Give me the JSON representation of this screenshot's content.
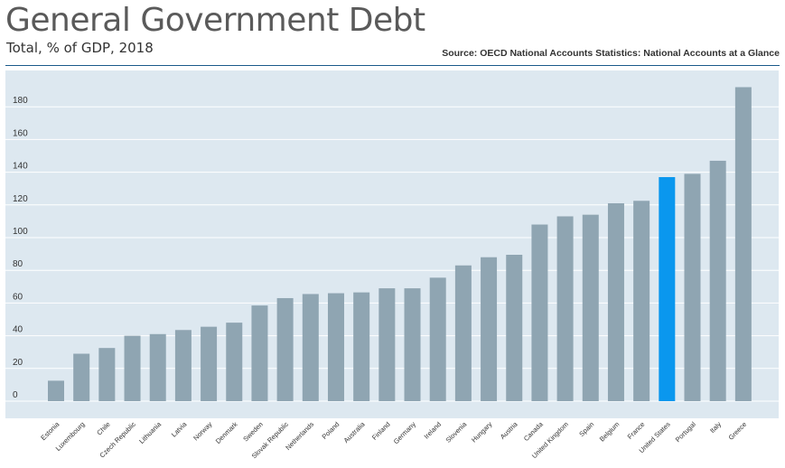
{
  "header": {
    "title": "General Government Debt",
    "subtitle": "Total, % of GDP, 2018",
    "source": "Source: OECD National Accounts Statistics: National Accounts at a Glance"
  },
  "colors": {
    "plot_background": "#dde8f0",
    "bar_default": "#8fa5b2",
    "bar_highlight": "#0a97ee",
    "rule": "#1a5a8a"
  },
  "chart_data": {
    "type": "bar",
    "title": "General Government Debt",
    "subtitle": "Total, % of GDP, 2018",
    "xlabel": "",
    "ylabel": "",
    "ylim": [
      0,
      200
    ],
    "yticks": [
      0,
      20,
      40,
      60,
      80,
      100,
      120,
      140,
      160,
      180
    ],
    "grid": true,
    "highlight": "United States",
    "categories": [
      "Estonia",
      "Luxembourg",
      "Chile",
      "Czech Republic",
      "Lithuania",
      "Latvia",
      "Norway",
      "Denmark",
      "Sweden",
      "Slovak Republic",
      "Netherlands",
      "Poland",
      "Australia",
      "Finland",
      "Germany",
      "Ireland",
      "Slovenia",
      "Hungary",
      "Austria",
      "Canada",
      "United Kingdom",
      "Spain",
      "Belgium",
      "France",
      "United States",
      "Portugal",
      "Italy",
      "Greece"
    ],
    "values": [
      12.5,
      29,
      32.5,
      40,
      41,
      43.5,
      45.5,
      48,
      58.5,
      63,
      65.5,
      66,
      66.5,
      69,
      69,
      75.5,
      83,
      88,
      89.5,
      108,
      113,
      114,
      121,
      122.5,
      137,
      139,
      147,
      192
    ]
  }
}
